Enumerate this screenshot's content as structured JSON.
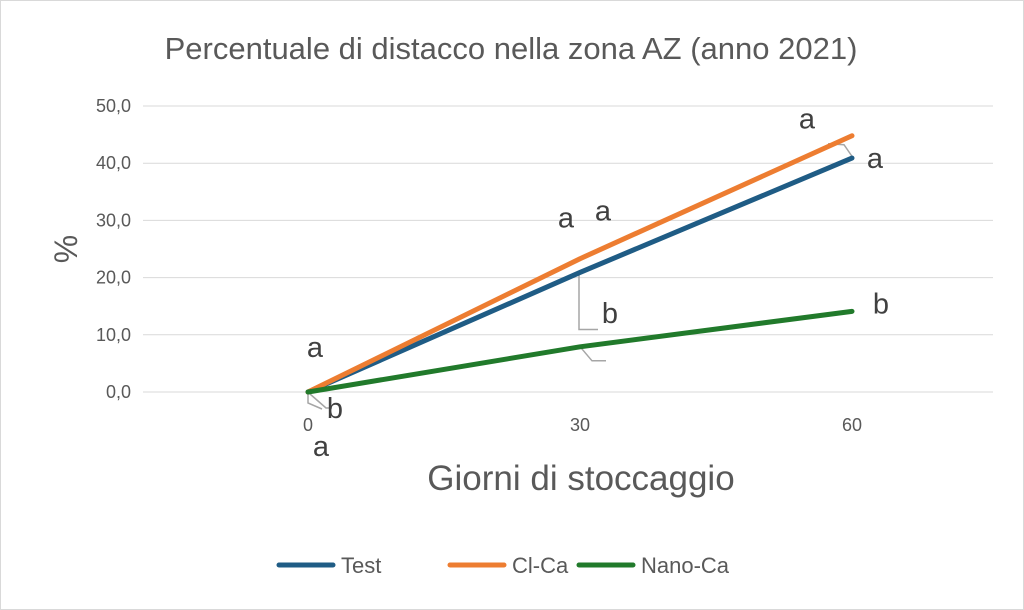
{
  "chart_data": {
    "type": "line",
    "title": "Percentuale di distacco nella zona AZ (anno 2021)",
    "xlabel": "Giorni di stoccaggio",
    "ylabel": "%",
    "categories": [
      "0",
      "30",
      "60"
    ],
    "x": [
      0,
      30,
      60
    ],
    "ylim": [
      0,
      50
    ],
    "yticks": [
      "0,0",
      "10,0",
      "20,0",
      "30,0",
      "40,0",
      "50,0"
    ],
    "grid": true,
    "legend": "bottom",
    "series": [
      {
        "name": "Test",
        "color": "#1f5c85",
        "values": [
          0,
          20.9,
          40.9
        ],
        "labels": [
          "a",
          "a",
          "a"
        ]
      },
      {
        "name": "Cl-Ca",
        "color": "#ed7d31",
        "values": [
          0,
          23.3,
          44.8
        ],
        "labels": [
          "a",
          "a",
          "a"
        ]
      },
      {
        "name": "Nano-Ca",
        "color": "#217a2b",
        "values": [
          0,
          7.9,
          14.1
        ],
        "labels": [
          "b",
          "b",
          "b"
        ]
      }
    ]
  }
}
